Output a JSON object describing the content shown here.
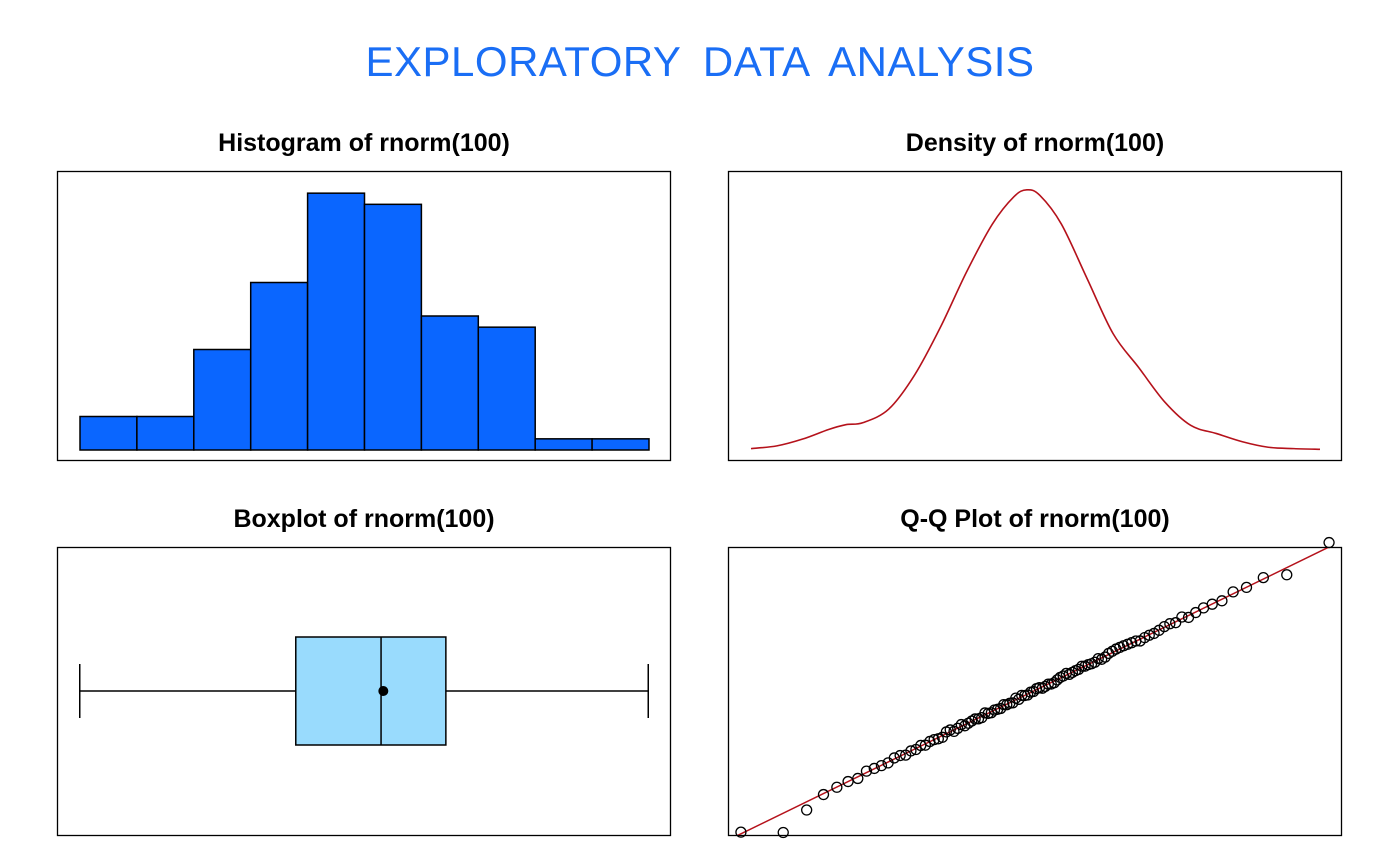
{
  "page": {
    "title": "EXPLORATORY  DATA  ANALYSIS",
    "title_color": "#1a6ef5"
  },
  "colors": {
    "hist_fill": "#0a66ff",
    "box_fill": "#99dbfd",
    "density_line": "#b5121b",
    "qq_line": "#b5121b"
  },
  "chart_data": [
    {
      "type": "bar",
      "title": "Histogram of rnorm(100)",
      "bins": [
        -2.5,
        -2.0,
        -1.5,
        -1.0,
        -0.5,
        0.0,
        0.5,
        1.0,
        1.5,
        2.0,
        2.5
      ],
      "counts": [
        3,
        3,
        9,
        15,
        23,
        22,
        12,
        11,
        1,
        1
      ],
      "ylim": [
        0,
        24
      ],
      "axes_shown": false
    },
    {
      "type": "line",
      "title": "Density of rnorm(100)",
      "x": [
        -3.2,
        -2.9,
        -2.6,
        -2.3,
        -2.1,
        -1.9,
        -1.6,
        -1.3,
        -1.0,
        -0.7,
        -0.4,
        -0.15,
        0.0,
        0.15,
        0.4,
        0.7,
        1.0,
        1.3,
        1.6,
        1.9,
        2.2,
        2.5,
        2.8,
        3.1,
        3.4
      ],
      "y": [
        0.002,
        0.006,
        0.016,
        0.03,
        0.037,
        0.04,
        0.06,
        0.11,
        0.18,
        0.26,
        0.33,
        0.37,
        0.38,
        0.372,
        0.33,
        0.25,
        0.17,
        0.12,
        0.07,
        0.036,
        0.024,
        0.012,
        0.004,
        0.002,
        0.001
      ],
      "ylim": [
        0,
        0.39
      ],
      "axes_shown": false
    },
    {
      "type": "box",
      "title": "Boxplot of rnorm(100)",
      "min": -2.5,
      "q1": -0.6,
      "median": 0.15,
      "mean": 0.17,
      "q3": 0.72,
      "max": 2.5,
      "xlim": [
        -2.7,
        2.7
      ],
      "axes_shown": false
    },
    {
      "type": "scatter",
      "title": "Q-Q Plot of rnorm(100)",
      "reference_line": {
        "intercept": 0.02,
        "slope": 1.04
      },
      "xlim": [
        -2.6,
        2.6
      ],
      "ylim": [
        -2.6,
        2.6
      ],
      "axes_shown": false
    }
  ]
}
